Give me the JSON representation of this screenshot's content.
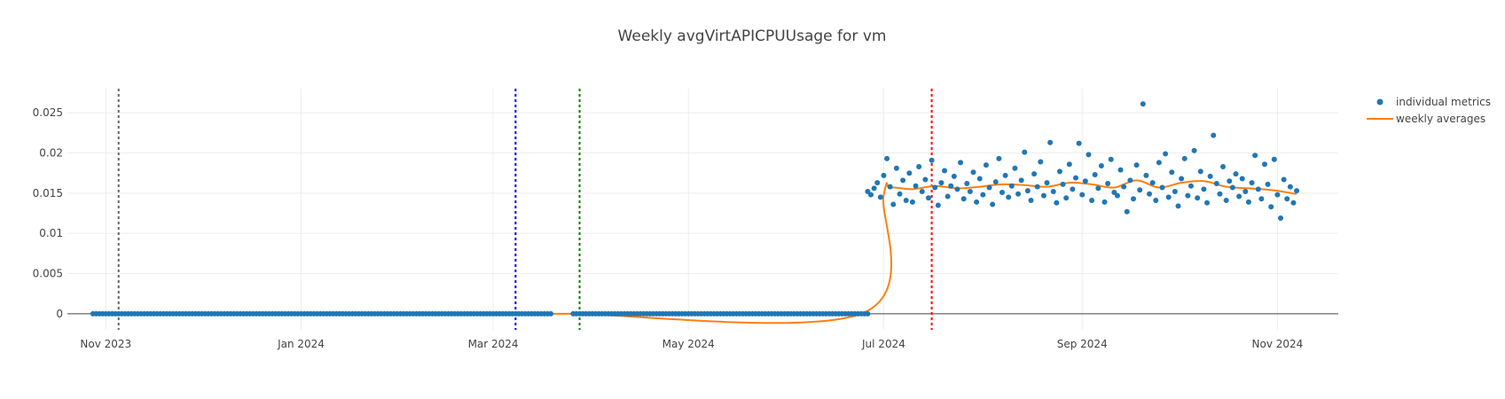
{
  "chart_data": {
    "type": "scatter",
    "title": "Weekly avgVirtAPICPUUsage for vm",
    "xlabel": "",
    "ylabel": "",
    "x_range": [
      "2023-10-20",
      "2024-11-20"
    ],
    "ylim": [
      -0.002,
      0.028
    ],
    "y_ticks": [
      0,
      0.005,
      0.01,
      0.015,
      0.02,
      0.025
    ],
    "y_tick_labels": [
      "0",
      "0.005",
      "0.01",
      "0.015",
      "0.02",
      "0.025"
    ],
    "x_ticks": [
      "2023-11-01",
      "2024-01-01",
      "2024-03-01",
      "2024-05-01",
      "2024-07-01",
      "2024-09-01",
      "2024-11-01"
    ],
    "x_tick_labels": [
      "Nov 2023",
      "Jan 2024",
      "Mar 2024",
      "May 2024",
      "Jul 2024",
      "Sep 2024",
      "Nov 2024"
    ],
    "grid": true,
    "legend_position": "top-right",
    "series": [
      {
        "name": "individual metrics",
        "mode": "markers",
        "color": "#1f77b4",
        "zero_ranges": [
          [
            "2023-10-28",
            "2024-03-19"
          ],
          [
            "2024-03-26",
            "2024-06-26"
          ]
        ],
        "points": [
          [
            "2024-06-26",
            0.0152
          ],
          [
            "2024-06-27",
            0.0148
          ],
          [
            "2024-06-28",
            0.0156
          ],
          [
            "2024-06-29",
            0.0163
          ],
          [
            "2024-06-30",
            0.0145
          ],
          [
            "2024-07-01",
            0.0172
          ],
          [
            "2024-07-02",
            0.0193
          ],
          [
            "2024-07-03",
            0.0158
          ],
          [
            "2024-07-04",
            0.0136
          ],
          [
            "2024-07-05",
            0.0181
          ],
          [
            "2024-07-06",
            0.0149
          ],
          [
            "2024-07-07",
            0.0166
          ],
          [
            "2024-07-08",
            0.0141
          ],
          [
            "2024-07-09",
            0.0175
          ],
          [
            "2024-07-10",
            0.0139
          ],
          [
            "2024-07-11",
            0.0159
          ],
          [
            "2024-07-12",
            0.0183
          ],
          [
            "2024-07-13",
            0.0152
          ],
          [
            "2024-07-14",
            0.0167
          ],
          [
            "2024-07-15",
            0.0144
          ],
          [
            "2024-07-16",
            0.0191
          ],
          [
            "2024-07-17",
            0.0157
          ],
          [
            "2024-07-18",
            0.0135
          ],
          [
            "2024-07-19",
            0.0163
          ],
          [
            "2024-07-20",
            0.0178
          ],
          [
            "2024-07-21",
            0.0146
          ],
          [
            "2024-07-22",
            0.0159
          ],
          [
            "2024-07-23",
            0.0171
          ],
          [
            "2024-07-24",
            0.0155
          ],
          [
            "2024-07-25",
            0.0188
          ],
          [
            "2024-07-26",
            0.0143
          ],
          [
            "2024-07-27",
            0.0162
          ],
          [
            "2024-07-28",
            0.0152
          ],
          [
            "2024-07-29",
            0.0176
          ],
          [
            "2024-07-30",
            0.0139
          ],
          [
            "2024-07-31",
            0.0168
          ],
          [
            "2024-08-01",
            0.0148
          ],
          [
            "2024-08-02",
            0.0185
          ],
          [
            "2024-08-03",
            0.0157
          ],
          [
            "2024-08-04",
            0.0136
          ],
          [
            "2024-08-05",
            0.0164
          ],
          [
            "2024-08-06",
            0.0193
          ],
          [
            "2024-08-07",
            0.0151
          ],
          [
            "2024-08-08",
            0.0172
          ],
          [
            "2024-08-09",
            0.0145
          ],
          [
            "2024-08-10",
            0.0159
          ],
          [
            "2024-08-11",
            0.0181
          ],
          [
            "2024-08-12",
            0.0149
          ],
          [
            "2024-08-13",
            0.0166
          ],
          [
            "2024-08-14",
            0.0201
          ],
          [
            "2024-08-15",
            0.0153
          ],
          [
            "2024-08-16",
            0.0141
          ],
          [
            "2024-08-17",
            0.0174
          ],
          [
            "2024-08-18",
            0.0158
          ],
          [
            "2024-08-19",
            0.0189
          ],
          [
            "2024-08-20",
            0.0147
          ],
          [
            "2024-08-21",
            0.0163
          ],
          [
            "2024-08-22",
            0.0213
          ],
          [
            "2024-08-23",
            0.0152
          ],
          [
            "2024-08-24",
            0.0138
          ],
          [
            "2024-08-25",
            0.0177
          ],
          [
            "2024-08-26",
            0.0161
          ],
          [
            "2024-08-27",
            0.0144
          ],
          [
            "2024-08-28",
            0.0186
          ],
          [
            "2024-08-29",
            0.0155
          ],
          [
            "2024-08-30",
            0.0169
          ],
          [
            "2024-08-31",
            0.0212
          ],
          [
            "2024-09-01",
            0.0148
          ],
          [
            "2024-09-02",
            0.0165
          ],
          [
            "2024-09-03",
            0.0198
          ],
          [
            "2024-09-04",
            0.0141
          ],
          [
            "2024-09-05",
            0.0173
          ],
          [
            "2024-09-06",
            0.0156
          ],
          [
            "2024-09-07",
            0.0184
          ],
          [
            "2024-09-08",
            0.0139
          ],
          [
            "2024-09-09",
            0.0162
          ],
          [
            "2024-09-10",
            0.0192
          ],
          [
            "2024-09-11",
            0.0151
          ],
          [
            "2024-09-12",
            0.0147
          ],
          [
            "2024-09-13",
            0.0179
          ],
          [
            "2024-09-14",
            0.0158
          ],
          [
            "2024-09-15",
            0.0127
          ],
          [
            "2024-09-16",
            0.0166
          ],
          [
            "2024-09-17",
            0.0143
          ],
          [
            "2024-09-18",
            0.0185
          ],
          [
            "2024-09-19",
            0.0154
          ],
          [
            "2024-09-20",
            0.0261
          ],
          [
            "2024-09-21",
            0.0172
          ],
          [
            "2024-09-22",
            0.0149
          ],
          [
            "2024-09-23",
            0.0163
          ],
          [
            "2024-09-24",
            0.0141
          ],
          [
            "2024-09-25",
            0.0188
          ],
          [
            "2024-09-26",
            0.0157
          ],
          [
            "2024-09-27",
            0.0199
          ],
          [
            "2024-09-28",
            0.0145
          ],
          [
            "2024-09-29",
            0.0176
          ],
          [
            "2024-09-30",
            0.0152
          ],
          [
            "2024-10-01",
            0.0134
          ],
          [
            "2024-10-02",
            0.0168
          ],
          [
            "2024-10-03",
            0.0193
          ],
          [
            "2024-10-04",
            0.0147
          ],
          [
            "2024-10-05",
            0.0159
          ],
          [
            "2024-10-06",
            0.0203
          ],
          [
            "2024-10-07",
            0.0144
          ],
          [
            "2024-10-08",
            0.0177
          ],
          [
            "2024-10-09",
            0.0155
          ],
          [
            "2024-10-10",
            0.0138
          ],
          [
            "2024-10-11",
            0.0171
          ],
          [
            "2024-10-12",
            0.0222
          ],
          [
            "2024-10-13",
            0.0162
          ],
          [
            "2024-10-14",
            0.0149
          ],
          [
            "2024-10-15",
            0.0183
          ],
          [
            "2024-10-16",
            0.0141
          ],
          [
            "2024-10-17",
            0.0165
          ],
          [
            "2024-10-18",
            0.0157
          ],
          [
            "2024-10-19",
            0.0174
          ],
          [
            "2024-10-20",
            0.0146
          ],
          [
            "2024-10-21",
            0.0168
          ],
          [
            "2024-10-22",
            0.0152
          ],
          [
            "2024-10-23",
            0.0139
          ],
          [
            "2024-10-24",
            0.0163
          ],
          [
            "2024-10-25",
            0.0197
          ],
          [
            "2024-10-26",
            0.0155
          ],
          [
            "2024-10-27",
            0.0143
          ],
          [
            "2024-10-28",
            0.0186
          ],
          [
            "2024-10-29",
            0.0161
          ],
          [
            "2024-10-30",
            0.0133
          ],
          [
            "2024-10-31",
            0.0192
          ],
          [
            "2024-11-01",
            0.0148
          ],
          [
            "2024-11-02",
            0.0119
          ],
          [
            "2024-11-03",
            0.0167
          ],
          [
            "2024-11-04",
            0.0143
          ],
          [
            "2024-11-05",
            0.0158
          ],
          [
            "2024-11-06",
            0.0138
          ],
          [
            "2024-11-07",
            0.0153
          ]
        ]
      },
      {
        "name": "weekly averages",
        "mode": "line",
        "color": "#ff7f0e",
        "points": [
          [
            "2023-10-28",
            0
          ],
          [
            "2024-03-19",
            0
          ],
          [
            "2024-03-26",
            0
          ],
          [
            "2024-06-24",
            0
          ],
          [
            "2024-07-01",
            0.0148
          ],
          [
            "2024-07-03",
            0.0157
          ],
          [
            "2024-07-10",
            0.0155
          ],
          [
            "2024-07-17",
            0.0159
          ],
          [
            "2024-07-24",
            0.0156
          ],
          [
            "2024-07-31",
            0.0158
          ],
          [
            "2024-08-07",
            0.0161
          ],
          [
            "2024-08-14",
            0.016
          ],
          [
            "2024-08-21",
            0.0158
          ],
          [
            "2024-08-28",
            0.0163
          ],
          [
            "2024-09-04",
            0.0161
          ],
          [
            "2024-09-11",
            0.0157
          ],
          [
            "2024-09-18",
            0.0166
          ],
          [
            "2024-09-25",
            0.0157
          ],
          [
            "2024-10-02",
            0.0163
          ],
          [
            "2024-10-09",
            0.0165
          ],
          [
            "2024-10-16",
            0.0158
          ],
          [
            "2024-10-23",
            0.0156
          ],
          [
            "2024-10-30",
            0.0154
          ],
          [
            "2024-11-07",
            0.0149
          ]
        ]
      }
    ],
    "vertical_lines": [
      {
        "x": "2023-11-05",
        "color": "#666666"
      },
      {
        "x": "2024-03-08",
        "color": "#0000ff"
      },
      {
        "x": "2024-03-28",
        "color": "#008000"
      },
      {
        "x": "2024-07-16",
        "color": "#ff0000"
      }
    ]
  }
}
